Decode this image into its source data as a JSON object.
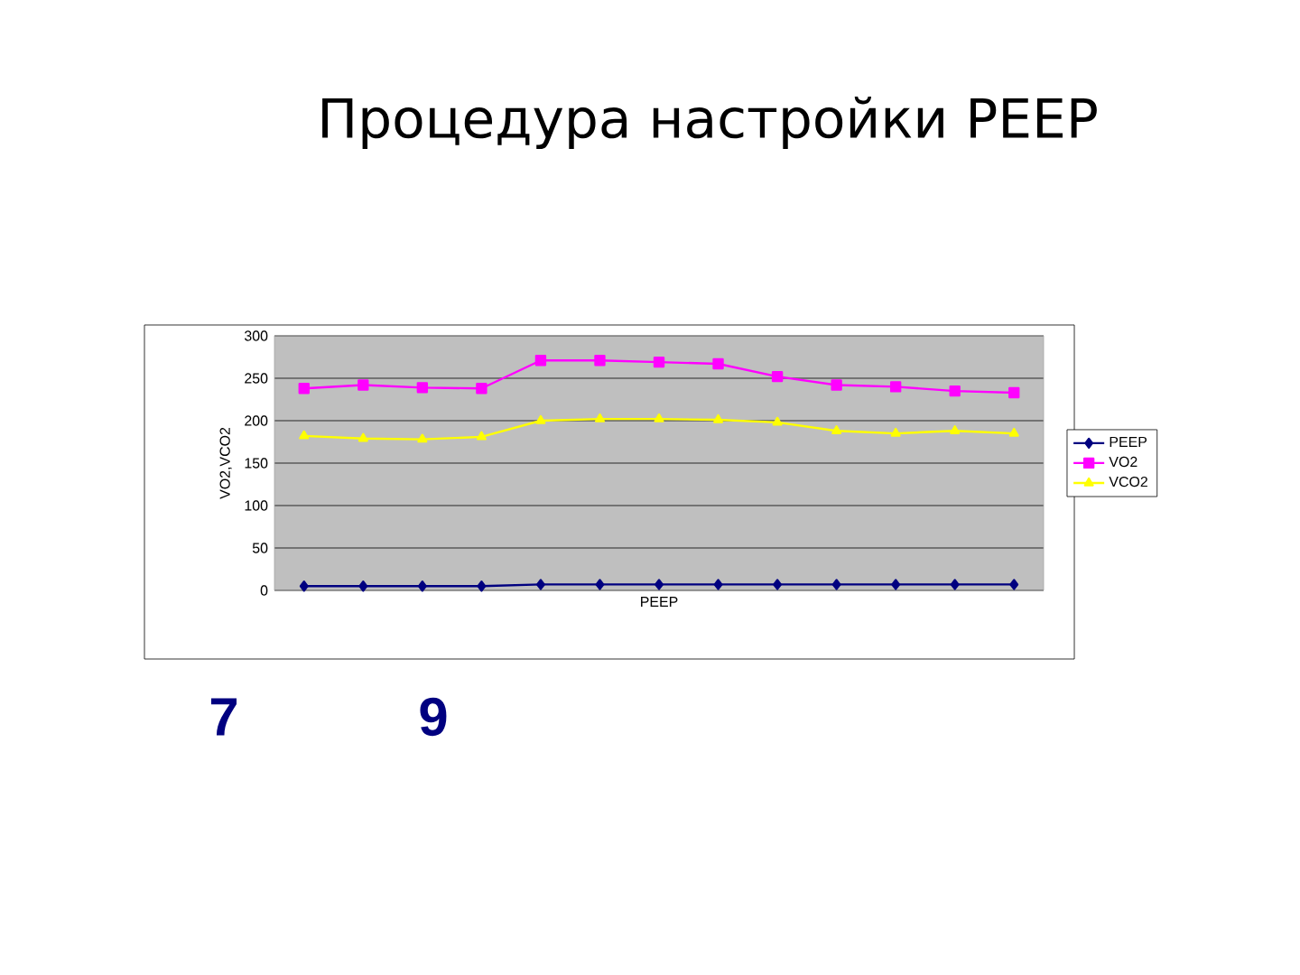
{
  "chart_data": {
    "type": "line",
    "title": "Процедура настройки PEEP",
    "xlabel": "PEEP",
    "ylabel": "VO2,VCO2",
    "categories": [
      null,
      null,
      null,
      null,
      null,
      null,
      null,
      null,
      null,
      null,
      null,
      null,
      null
    ],
    "series": [
      {
        "name": "PEEP",
        "color": "#000080",
        "marker": "diamond",
        "values": [
          5,
          5,
          5,
          5,
          7,
          7,
          7,
          7,
          7,
          7,
          7,
          7,
          7
        ]
      },
      {
        "name": "VO2",
        "color": "#ff00ff",
        "marker": "square",
        "values": [
          238,
          242,
          239,
          238,
          271,
          271,
          269,
          267,
          252,
          242,
          240,
          235,
          233
        ]
      },
      {
        "name": "VCO2",
        "color": "#ffff00",
        "marker": "triangle",
        "values": [
          182,
          179,
          178,
          181,
          200,
          202,
          202,
          201,
          198,
          188,
          185,
          188,
          185
        ]
      }
    ],
    "ylim": [
      0,
      300
    ],
    "yticks": [
      0,
      50,
      100,
      150,
      200,
      250,
      300
    ],
    "grid": "y",
    "legend": "right",
    "annotations": [
      "7",
      "9"
    ]
  }
}
